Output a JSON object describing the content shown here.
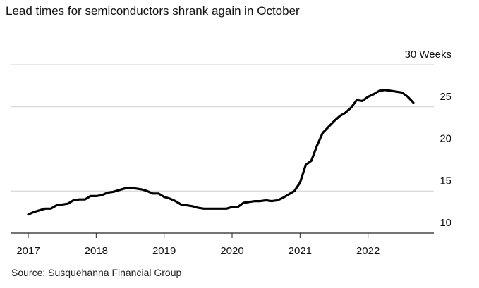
{
  "title": "Lead times for semiconductors shrank again in October",
  "source": "Source: Susquehanna Financial Group",
  "chart_data": {
    "type": "line",
    "title": "Lead times for semiconductors shrank again in October",
    "xlabel": "",
    "ylabel": "",
    "y_unit": "Weeks",
    "ylim": [
      10,
      30
    ],
    "xlim": [
      "2017-01",
      "2023-01"
    ],
    "grid": true,
    "y_ticks": [
      10,
      15,
      20,
      25,
      30
    ],
    "y_tick_labels": [
      "10",
      "15",
      "20",
      "25",
      "30 Weeks"
    ],
    "x_tick_labels": [
      "2017",
      "2018",
      "2019",
      "2020",
      "2021",
      "2022"
    ],
    "series": [
      {
        "color": "#000000",
        "points": [
          [
            "2017-01",
            12.2
          ],
          [
            "2017-02",
            12.5
          ],
          [
            "2017-03",
            12.7
          ],
          [
            "2017-04",
            12.9
          ],
          [
            "2017-05",
            12.9
          ],
          [
            "2017-06",
            13.3
          ],
          [
            "2017-07",
            13.4
          ],
          [
            "2017-08",
            13.5
          ],
          [
            "2017-09",
            13.9
          ],
          [
            "2017-10",
            14.0
          ],
          [
            "2017-11",
            14.0
          ],
          [
            "2017-12",
            14.4
          ],
          [
            "2018-01",
            14.4
          ],
          [
            "2018-02",
            14.5
          ],
          [
            "2018-03",
            14.8
          ],
          [
            "2018-04",
            14.9
          ],
          [
            "2018-05",
            15.1
          ],
          [
            "2018-06",
            15.3
          ],
          [
            "2018-07",
            15.4
          ],
          [
            "2018-08",
            15.3
          ],
          [
            "2018-09",
            15.2
          ],
          [
            "2018-10",
            15.0
          ],
          [
            "2018-11",
            14.7
          ],
          [
            "2018-12",
            14.7
          ],
          [
            "2019-01",
            14.3
          ],
          [
            "2019-02",
            14.1
          ],
          [
            "2019-03",
            13.8
          ],
          [
            "2019-04",
            13.4
          ],
          [
            "2019-05",
            13.3
          ],
          [
            "2019-06",
            13.2
          ],
          [
            "2019-07",
            13.0
          ],
          [
            "2019-08",
            12.9
          ],
          [
            "2019-09",
            12.9
          ],
          [
            "2019-10",
            12.9
          ],
          [
            "2019-11",
            12.9
          ],
          [
            "2019-12",
            12.9
          ],
          [
            "2020-01",
            13.1
          ],
          [
            "2020-02",
            13.1
          ],
          [
            "2020-03",
            13.6
          ],
          [
            "2020-04",
            13.7
          ],
          [
            "2020-05",
            13.8
          ],
          [
            "2020-06",
            13.8
          ],
          [
            "2020-07",
            13.9
          ],
          [
            "2020-08",
            13.8
          ],
          [
            "2020-09",
            13.9
          ],
          [
            "2020-10",
            14.2
          ],
          [
            "2020-11",
            14.6
          ],
          [
            "2020-12",
            15.0
          ],
          [
            "2021-01",
            16.0
          ],
          [
            "2021-02",
            18.1
          ],
          [
            "2021-03",
            18.6
          ],
          [
            "2021-04",
            20.4
          ],
          [
            "2021-05",
            21.9
          ],
          [
            "2021-06",
            22.6
          ],
          [
            "2021-07",
            23.3
          ],
          [
            "2021-08",
            23.9
          ],
          [
            "2021-09",
            24.3
          ],
          [
            "2021-10",
            24.9
          ],
          [
            "2021-11",
            25.8
          ],
          [
            "2021-12",
            25.7
          ],
          [
            "2022-01",
            26.2
          ],
          [
            "2022-02",
            26.5
          ],
          [
            "2022-03",
            26.9
          ],
          [
            "2022-04",
            27.0
          ],
          [
            "2022-05",
            26.9
          ],
          [
            "2022-06",
            26.8
          ],
          [
            "2022-07",
            26.7
          ],
          [
            "2022-08",
            26.2
          ],
          [
            "2022-09",
            25.5
          ]
        ]
      }
    ]
  }
}
